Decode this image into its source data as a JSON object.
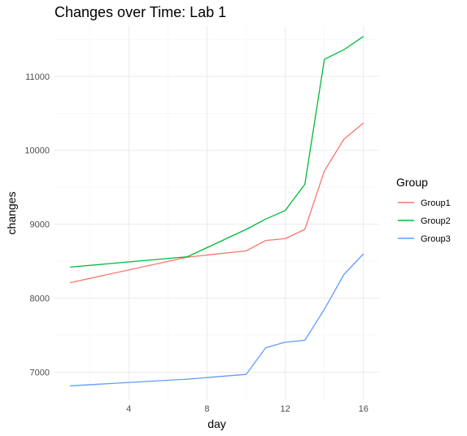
{
  "chart_data": {
    "type": "line",
    "title": "Changes over Time: Lab 1",
    "xlabel": "day",
    "ylabel": "changes",
    "xlim": [
      0.2,
      16.8
    ],
    "ylim": [
      6620,
      11680
    ],
    "x_ticks": [
      4,
      8,
      12,
      16
    ],
    "y_ticks": [
      7000,
      8000,
      9000,
      10000,
      11000
    ],
    "grid": true,
    "legend": {
      "title": "Group",
      "placement": "right"
    },
    "series": [
      {
        "name": "Group1",
        "color": "#F8766D",
        "x": [
          1,
          7,
          10,
          11,
          12,
          13,
          14,
          15,
          16
        ],
        "y": [
          8210,
          8555,
          8640,
          8780,
          8805,
          8930,
          9720,
          10150,
          10370
        ]
      },
      {
        "name": "Group2",
        "color": "#00BA38",
        "x": [
          1,
          7,
          10,
          11,
          12,
          13,
          14,
          15,
          16
        ],
        "y": [
          8420,
          8560,
          8930,
          9070,
          9185,
          9540,
          11230,
          11360,
          11540
        ]
      },
      {
        "name": "Group3",
        "color": "#619CFF",
        "x": [
          1,
          7,
          10,
          11,
          12,
          13,
          14,
          15,
          16
        ],
        "y": [
          6815,
          6905,
          6970,
          7330,
          7405,
          7430,
          7850,
          8320,
          8600
        ]
      }
    ]
  }
}
